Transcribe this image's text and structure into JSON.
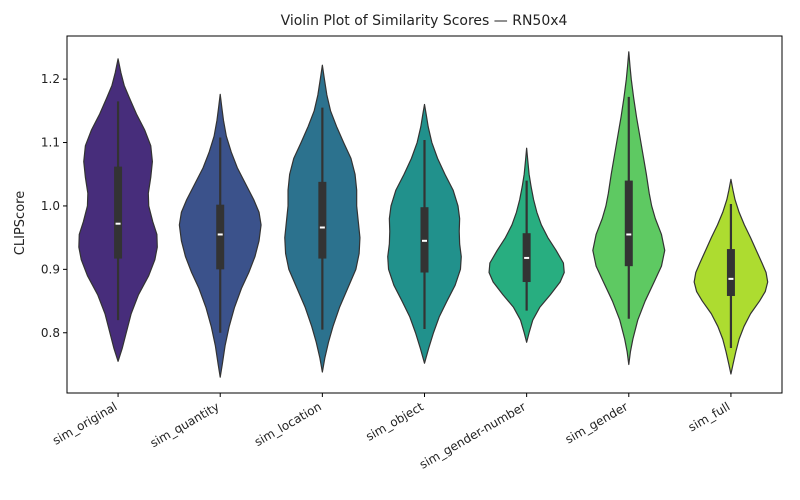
{
  "chart_data": {
    "type": "violin",
    "title": "Violin Plot of Similarity Scores — RN50x4",
    "ylabel": "CLIPScore",
    "xlabel": "",
    "ylim": [
      0.705,
      1.268
    ],
    "yticks": [
      0.8,
      0.9,
      1.0,
      1.1,
      1.2
    ],
    "ytick_labels": [
      "0.8",
      "0.9",
      "1.0",
      "1.1",
      "1.2"
    ],
    "grid": false,
    "legend": "none",
    "categories": [
      "sim_original",
      "sim_quantity",
      "sim_location",
      "sim_object",
      "sim_gender-number",
      "sim_gender",
      "sim_full"
    ],
    "colors": [
      "#472d7b",
      "#3b528b",
      "#2c728e",
      "#21918c",
      "#28ae80",
      "#5ec962",
      "#addc30"
    ],
    "series": [
      {
        "category": "sim_original",
        "min": 0.755,
        "max": 1.232,
        "whisker_low": 0.82,
        "q1": 0.917,
        "median": 0.972,
        "q3": 1.062,
        "whisker_high": 1.165,
        "density": [
          [
            0.755,
            0.0
          ],
          [
            0.775,
            0.1
          ],
          [
            0.8,
            0.2
          ],
          [
            0.83,
            0.32
          ],
          [
            0.86,
            0.5
          ],
          [
            0.89,
            0.75
          ],
          [
            0.915,
            0.9
          ],
          [
            0.935,
            0.96
          ],
          [
            0.955,
            0.95
          ],
          [
            0.975,
            0.85
          ],
          [
            1.0,
            0.75
          ],
          [
            1.02,
            0.74
          ],
          [
            1.045,
            0.8
          ],
          [
            1.07,
            0.84
          ],
          [
            1.095,
            0.8
          ],
          [
            1.12,
            0.65
          ],
          [
            1.145,
            0.45
          ],
          [
            1.17,
            0.28
          ],
          [
            1.19,
            0.15
          ],
          [
            1.21,
            0.07
          ],
          [
            1.232,
            0.0
          ]
        ]
      },
      {
        "category": "sim_quantity",
        "min": 0.73,
        "max": 1.176,
        "whisker_low": 0.8,
        "q1": 0.9,
        "median": 0.955,
        "q3": 1.002,
        "whisker_high": 1.108,
        "density": [
          [
            0.73,
            0.0
          ],
          [
            0.75,
            0.05
          ],
          [
            0.78,
            0.12
          ],
          [
            0.81,
            0.22
          ],
          [
            0.84,
            0.35
          ],
          [
            0.87,
            0.52
          ],
          [
            0.895,
            0.7
          ],
          [
            0.92,
            0.85
          ],
          [
            0.945,
            0.95
          ],
          [
            0.97,
            1.0
          ],
          [
            0.99,
            0.95
          ],
          [
            1.01,
            0.82
          ],
          [
            1.035,
            0.62
          ],
          [
            1.06,
            0.42
          ],
          [
            1.085,
            0.27
          ],
          [
            1.11,
            0.15
          ],
          [
            1.135,
            0.08
          ],
          [
            1.155,
            0.04
          ],
          [
            1.176,
            0.0
          ]
        ]
      },
      {
        "category": "sim_location",
        "min": 0.738,
        "max": 1.222,
        "whisker_low": 0.805,
        "q1": 0.917,
        "median": 0.966,
        "q3": 1.038,
        "whisker_high": 1.155,
        "density": [
          [
            0.738,
            0.0
          ],
          [
            0.76,
            0.06
          ],
          [
            0.785,
            0.15
          ],
          [
            0.81,
            0.26
          ],
          [
            0.84,
            0.42
          ],
          [
            0.87,
            0.62
          ],
          [
            0.9,
            0.82
          ],
          [
            0.925,
            0.9
          ],
          [
            0.95,
            0.92
          ],
          [
            0.975,
            0.88
          ],
          [
            1.0,
            0.84
          ],
          [
            1.025,
            0.84
          ],
          [
            1.05,
            0.8
          ],
          [
            1.075,
            0.7
          ],
          [
            1.1,
            0.52
          ],
          [
            1.125,
            0.35
          ],
          [
            1.15,
            0.2
          ],
          [
            1.175,
            0.11
          ],
          [
            1.2,
            0.05
          ],
          [
            1.222,
            0.0
          ]
        ]
      },
      {
        "category": "sim_object",
        "min": 0.752,
        "max": 1.16,
        "whisker_low": 0.806,
        "q1": 0.895,
        "median": 0.945,
        "q3": 0.998,
        "whisker_high": 1.104,
        "density": [
          [
            0.752,
            0.0
          ],
          [
            0.775,
            0.1
          ],
          [
            0.8,
            0.22
          ],
          [
            0.825,
            0.36
          ],
          [
            0.85,
            0.55
          ],
          [
            0.875,
            0.75
          ],
          [
            0.9,
            0.88
          ],
          [
            0.92,
            0.9
          ],
          [
            0.94,
            0.86
          ],
          [
            0.96,
            0.85
          ],
          [
            0.98,
            0.86
          ],
          [
            1.0,
            0.82
          ],
          [
            1.025,
            0.7
          ],
          [
            1.05,
            0.5
          ],
          [
            1.075,
            0.32
          ],
          [
            1.1,
            0.18
          ],
          [
            1.125,
            0.09
          ],
          [
            1.145,
            0.04
          ],
          [
            1.16,
            0.0
          ]
        ]
      },
      {
        "category": "sim_gender-number",
        "min": 0.785,
        "max": 1.091,
        "whisker_low": 0.835,
        "q1": 0.88,
        "median": 0.918,
        "q3": 0.957,
        "whisker_high": 1.04,
        "density": [
          [
            0.785,
            0.0
          ],
          [
            0.8,
            0.06
          ],
          [
            0.82,
            0.15
          ],
          [
            0.84,
            0.32
          ],
          [
            0.86,
            0.58
          ],
          [
            0.88,
            0.82
          ],
          [
            0.895,
            0.92
          ],
          [
            0.91,
            0.9
          ],
          [
            0.93,
            0.72
          ],
          [
            0.95,
            0.52
          ],
          [
            0.97,
            0.36
          ],
          [
            0.99,
            0.25
          ],
          [
            1.01,
            0.17
          ],
          [
            1.03,
            0.11
          ],
          [
            1.05,
            0.06
          ],
          [
            1.07,
            0.03
          ],
          [
            1.091,
            0.0
          ]
        ]
      },
      {
        "category": "sim_gender",
        "min": 0.75,
        "max": 1.243,
        "whisker_low": 0.822,
        "q1": 0.905,
        "median": 0.955,
        "q3": 1.04,
        "whisker_high": 1.172,
        "density": [
          [
            0.75,
            0.0
          ],
          [
            0.77,
            0.04
          ],
          [
            0.79,
            0.1
          ],
          [
            0.82,
            0.22
          ],
          [
            0.85,
            0.4
          ],
          [
            0.88,
            0.62
          ],
          [
            0.905,
            0.8
          ],
          [
            0.93,
            0.88
          ],
          [
            0.955,
            0.8
          ],
          [
            0.98,
            0.65
          ],
          [
            1.0,
            0.56
          ],
          [
            1.02,
            0.5
          ],
          [
            1.05,
            0.43
          ],
          [
            1.08,
            0.35
          ],
          [
            1.11,
            0.27
          ],
          [
            1.14,
            0.19
          ],
          [
            1.17,
            0.12
          ],
          [
            1.2,
            0.06
          ],
          [
            1.22,
            0.03
          ],
          [
            1.243,
            0.0
          ]
        ]
      },
      {
        "category": "sim_full",
        "min": 0.735,
        "max": 1.042,
        "whisker_low": 0.776,
        "q1": 0.858,
        "median": 0.885,
        "q3": 0.932,
        "whisker_high": 1.003,
        "density": [
          [
            0.735,
            0.0
          ],
          [
            0.75,
            0.05
          ],
          [
            0.77,
            0.12
          ],
          [
            0.79,
            0.2
          ],
          [
            0.81,
            0.32
          ],
          [
            0.83,
            0.48
          ],
          [
            0.85,
            0.7
          ],
          [
            0.865,
            0.84
          ],
          [
            0.88,
            0.9
          ],
          [
            0.895,
            0.86
          ],
          [
            0.91,
            0.76
          ],
          [
            0.93,
            0.62
          ],
          [
            0.95,
            0.48
          ],
          [
            0.97,
            0.33
          ],
          [
            0.99,
            0.2
          ],
          [
            1.01,
            0.1
          ],
          [
            1.025,
            0.05
          ],
          [
            1.042,
            0.0
          ]
        ]
      }
    ]
  }
}
